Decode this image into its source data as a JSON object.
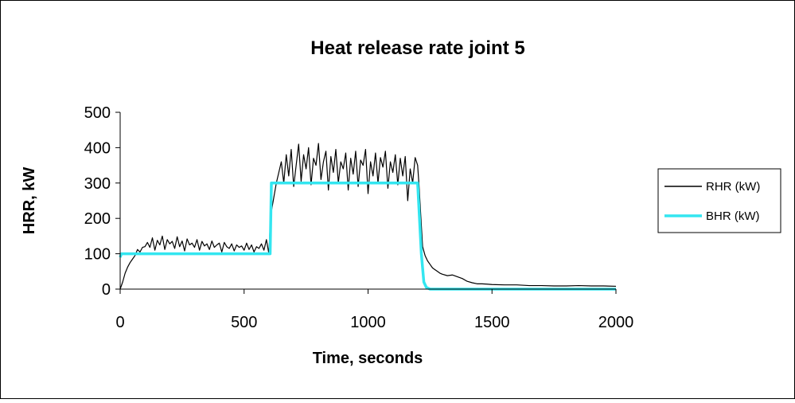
{
  "chart_data": {
    "type": "line",
    "title": "Heat release rate joint 5",
    "xlabel": "Time, seconds",
    "ylabel": "HRR, kW",
    "xlim": [
      0,
      2000
    ],
    "ylim": [
      0,
      500
    ],
    "xticks": [
      0,
      500,
      1000,
      1500,
      2000
    ],
    "yticks": [
      0,
      100,
      200,
      300,
      400,
      500
    ],
    "grid": false,
    "legend_position": "right",
    "series": [
      {
        "name": "RHR (kW)",
        "color": "#000000",
        "x": [
          0,
          10,
          20,
          30,
          40,
          50,
          60,
          70,
          80,
          90,
          100,
          110,
          120,
          130,
          140,
          150,
          160,
          170,
          180,
          190,
          200,
          210,
          220,
          230,
          240,
          250,
          260,
          270,
          280,
          290,
          300,
          310,
          320,
          330,
          340,
          350,
          360,
          370,
          380,
          390,
          400,
          410,
          420,
          430,
          440,
          450,
          460,
          470,
          480,
          490,
          500,
          510,
          520,
          530,
          540,
          550,
          560,
          570,
          580,
          590,
          600,
          605,
          610,
          620,
          630,
          640,
          650,
          660,
          670,
          680,
          690,
          700,
          710,
          720,
          730,
          740,
          750,
          760,
          770,
          780,
          790,
          800,
          810,
          820,
          830,
          840,
          850,
          860,
          870,
          880,
          890,
          900,
          910,
          920,
          930,
          940,
          950,
          960,
          970,
          980,
          990,
          1000,
          1010,
          1020,
          1030,
          1040,
          1050,
          1060,
          1070,
          1080,
          1090,
          1100,
          1110,
          1120,
          1130,
          1140,
          1150,
          1160,
          1170,
          1180,
          1190,
          1200,
          1205,
          1210,
          1215,
          1220,
          1230,
          1240,
          1250,
          1260,
          1270,
          1280,
          1290,
          1300,
          1320,
          1340,
          1360,
          1380,
          1400,
          1420,
          1440,
          1460,
          1480,
          1500,
          1550,
          1600,
          1650,
          1700,
          1750,
          1800,
          1850,
          1900,
          1950,
          2000
        ],
        "y": [
          0,
          20,
          45,
          62,
          75,
          85,
          95,
          112,
          105,
          118,
          120,
          132,
          118,
          145,
          110,
          138,
          125,
          150,
          112,
          140,
          128,
          135,
          115,
          148,
          120,
          136,
          108,
          142,
          125,
          130,
          118,
          140,
          110,
          135,
          122,
          128,
          112,
          136,
          118,
          125,
          130,
          105,
          132,
          120,
          115,
          128,
          108,
          125,
          118,
          122,
          110,
          130,
          112,
          125,
          105,
          120,
          115,
          128,
          110,
          140,
          100,
          180,
          220,
          260,
          300,
          330,
          360,
          300,
          380,
          320,
          395,
          290,
          350,
          410,
          305,
          380,
          340,
          400,
          295,
          370,
          350,
          412,
          310,
          360,
          390,
          280,
          375,
          330,
          395,
          300,
          360,
          340,
          385,
          280,
          370,
          325,
          390,
          290,
          365,
          350,
          395,
          270,
          360,
          320,
          385,
          300,
          372,
          345,
          390,
          285,
          360,
          330,
          380,
          295,
          370,
          320,
          375,
          250,
          340,
          300,
          372,
          350,
          300,
          240,
          180,
          120,
          95,
          80,
          70,
          60,
          55,
          50,
          45,
          42,
          38,
          40,
          35,
          30,
          22,
          18,
          15,
          15,
          14,
          13,
          12,
          12,
          10,
          10,
          9,
          9,
          10,
          9,
          9,
          8
        ]
      },
      {
        "name": "BHR (kW)",
        "color": "#33e6f0",
        "x": [
          0,
          5,
          10,
          598,
          605,
          610,
          1195,
          1200,
          1215,
          1225,
          1235,
          1250,
          2000
        ],
        "y": [
          90,
          100,
          100,
          100,
          100,
          300,
          300,
          300,
          100,
          20,
          5,
          0,
          0
        ]
      }
    ]
  }
}
